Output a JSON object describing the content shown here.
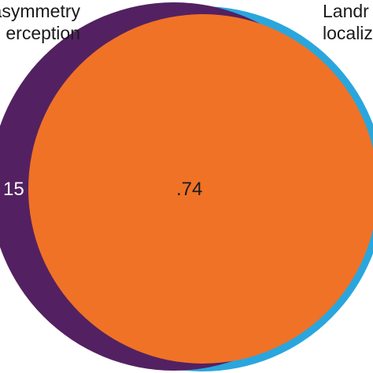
{
  "venn": {
    "sets": [
      {
        "label_lines": [
          "asymmetry",
          "erception"
        ],
        "color": "#532161"
      },
      {
        "label_lines": [
          "Landr",
          "localiz"
        ],
        "color": "#2aa6dd"
      }
    ],
    "overlap_color": "#f07226",
    "values": {
      "left_only": "15",
      "overlap": ".74"
    },
    "value_colors": {
      "left_only": "#ffffff",
      "overlap": "#1a1a1a"
    }
  }
}
